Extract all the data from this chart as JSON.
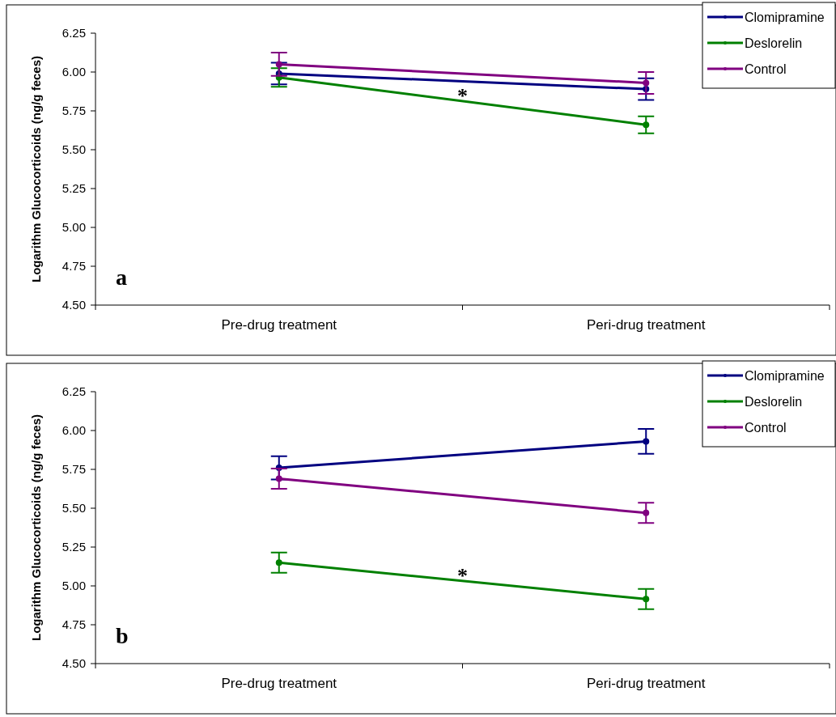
{
  "chart_data": [
    {
      "type": "line",
      "ylabel": "Logarithm Glucocorticoids (ng/g feces)",
      "categories": [
        "Pre-drug treatment",
        "Peri-drug treatment"
      ],
      "ylim": [
        4.5,
        6.25
      ],
      "yticks": [
        {
          "value": 4.5,
          "label": "4.50"
        },
        {
          "value": 4.75,
          "label": "4.75"
        },
        {
          "value": 5,
          "label": "5.00"
        },
        {
          "value": 5.25,
          "label": "5.25"
        },
        {
          "value": 5.5,
          "label": "5.50"
        },
        {
          "value": 5.75,
          "label": "5.75"
        },
        {
          "value": 6,
          "label": "6.00"
        },
        {
          "value": 6.25,
          "label": "6.25"
        }
      ],
      "grid": false,
      "legend": "top right",
      "marker": "circle",
      "annotations": [
        "*",
        "a"
      ],
      "series": [
        {
          "name": "Clomipramine",
          "color": "#000080",
          "values": [
            5.99,
            5.89
          ],
          "errors": [
            0.07,
            0.07
          ]
        },
        {
          "name": "Deslorelin",
          "color": "#008000",
          "values": [
            5.965,
            5.66
          ],
          "errors": [
            0.06,
            0.055
          ]
        },
        {
          "name": "Control",
          "color": "#800080",
          "values": [
            6.05,
            5.93
          ],
          "errors": [
            0.075,
            0.07
          ]
        }
      ]
    },
    {
      "type": "line",
      "ylabel": "Logarithm Glucocorticoids (ng/g feces)",
      "categories": [
        "Pre-drug treatment",
        "Peri-drug treatment"
      ],
      "ylim": [
        4.5,
        6.25
      ],
      "yticks": [
        {
          "value": 4.5,
          "label": "4.50"
        },
        {
          "value": 4.75,
          "label": "4.75"
        },
        {
          "value": 5,
          "label": "5.00"
        },
        {
          "value": 5.25,
          "label": "5.25"
        },
        {
          "value": 5.5,
          "label": "5.50"
        },
        {
          "value": 5.75,
          "label": "5.75"
        },
        {
          "value": 6,
          "label": "6.00"
        },
        {
          "value": 6.25,
          "label": "6.25"
        }
      ],
      "grid": false,
      "legend": "top right",
      "marker": "circle",
      "annotations": [
        "*",
        "b"
      ],
      "series": [
        {
          "name": "Clomipramine",
          "color": "#000080",
          "values": [
            5.76,
            5.93
          ],
          "errors": [
            0.075,
            0.08
          ]
        },
        {
          "name": "Deslorelin",
          "color": "#008000",
          "values": [
            5.15,
            4.915
          ],
          "errors": [
            0.065,
            0.065
          ]
        },
        {
          "name": "Control",
          "color": "#800080",
          "values": [
            5.69,
            5.47
          ],
          "errors": [
            0.065,
            0.065
          ]
        }
      ]
    }
  ]
}
